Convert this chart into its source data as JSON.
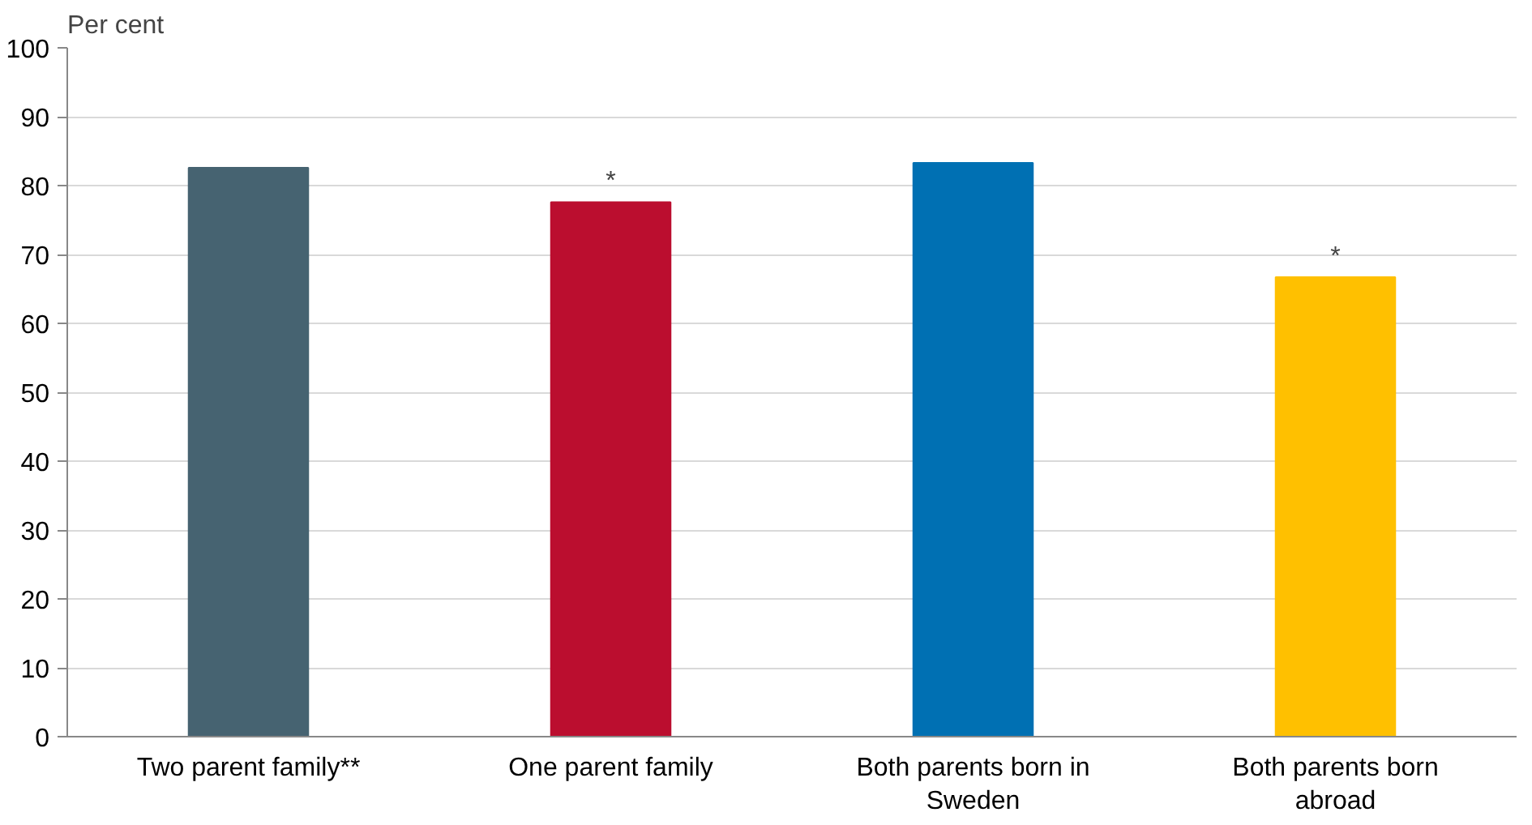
{
  "chart_data": {
    "type": "bar",
    "ylabel": "Per cent",
    "categories": [
      "Two parent family**",
      "One parent family",
      "Both parents born in Sweden",
      "Both parents born abroad"
    ],
    "values": [
      82.6,
      77.6,
      83.3,
      66.7
    ],
    "colors": [
      "#466371",
      "#bb0e2f",
      "#0070b3",
      "#ffc000"
    ],
    "ylim": [
      0,
      100
    ],
    "yticks": [
      0,
      10,
      20,
      30,
      40,
      50,
      60,
      70,
      80,
      90,
      100
    ],
    "grid": "y",
    "annotations": [
      {
        "text": "*",
        "x": "One parent family",
        "y": 77.6
      },
      {
        "text": "*",
        "x": "Both parents born abroad",
        "y": 66.7
      }
    ]
  }
}
